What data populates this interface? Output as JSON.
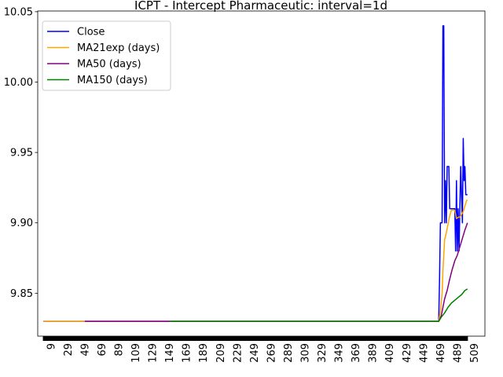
{
  "chart_data": {
    "type": "line",
    "title": "ICPT - Intercept Pharmaceutic: interval=1d",
    "xlabel": "",
    "ylabel": "",
    "xlim": [
      -6.6,
      521.6
    ],
    "ylim": [
      9.8195,
      10.0505
    ],
    "x_ticks": [
      9,
      29,
      49,
      69,
      89,
      109,
      129,
      149,
      169,
      189,
      209,
      229,
      249,
      269,
      289,
      309,
      329,
      349,
      369,
      389,
      409,
      429,
      449,
      469,
      489,
      509
    ],
    "y_ticks": [
      9.85,
      9.9,
      9.95,
      10.0,
      10.05
    ],
    "y_tick_labels": [
      "9.85",
      "9.90",
      "9.95",
      "10.00",
      "10.05"
    ],
    "grid": false,
    "legend_position": "upper-left",
    "series": [
      {
        "name": "Close",
        "color": "#0000ff",
        "points": [
          [
            0,
            9.83
          ],
          [
            467,
            9.83
          ],
          [
            468,
            9.86
          ],
          [
            469,
            9.9
          ],
          [
            471,
            9.9
          ],
          [
            472,
            10.04
          ],
          [
            473,
            10.04
          ],
          [
            474,
            9.9
          ],
          [
            475,
            9.93
          ],
          [
            476,
            9.9
          ],
          [
            477,
            9.94
          ],
          [
            479,
            9.94
          ],
          [
            480,
            9.91
          ],
          [
            486,
            9.91
          ],
          [
            487,
            9.88
          ],
          [
            488,
            9.93
          ],
          [
            489,
            9.88
          ],
          [
            490,
            9.91
          ],
          [
            491,
            9.88
          ],
          [
            493,
            9.94
          ],
          [
            494,
            9.92
          ],
          [
            495,
            9.9
          ],
          [
            496,
            9.96
          ],
          [
            497,
            9.93
          ],
          [
            498,
            9.94
          ],
          [
            499,
            9.92
          ],
          [
            501,
            9.92
          ]
        ]
      },
      {
        "name": "MA21exp (days)",
        "color": "#ffa500",
        "points": [
          [
            0,
            9.83
          ],
          [
            467,
            9.83
          ],
          [
            469,
            9.837
          ],
          [
            471,
            9.85
          ],
          [
            472,
            9.866
          ],
          [
            474,
            9.888
          ],
          [
            476,
            9.893
          ],
          [
            478,
            9.899
          ],
          [
            480,
            9.905
          ],
          [
            482,
            9.909
          ],
          [
            486,
            9.909
          ],
          [
            488,
            9.903
          ],
          [
            490,
            9.904
          ],
          [
            492,
            9.904
          ],
          [
            494,
            9.906
          ],
          [
            496,
            9.908
          ],
          [
            498,
            9.912
          ],
          [
            500,
            9.916
          ],
          [
            501,
            9.916
          ]
        ]
      },
      {
        "name": "MA50 (days)",
        "color": "#800080",
        "points": [
          [
            49,
            9.83
          ],
          [
            467,
            9.83
          ],
          [
            470,
            9.834
          ],
          [
            472,
            9.84
          ],
          [
            474,
            9.846
          ],
          [
            477,
            9.852
          ],
          [
            480,
            9.86
          ],
          [
            483,
            9.867
          ],
          [
            486,
            9.873
          ],
          [
            489,
            9.877
          ],
          [
            492,
            9.883
          ],
          [
            495,
            9.889
          ],
          [
            498,
            9.895
          ],
          [
            501,
            9.9
          ]
        ]
      },
      {
        "name": "MA150 (days)",
        "color": "#008000",
        "points": [
          [
            149,
            9.83
          ],
          [
            467,
            9.83
          ],
          [
            470,
            9.833
          ],
          [
            474,
            9.836
          ],
          [
            478,
            9.84
          ],
          [
            482,
            9.843
          ],
          [
            486,
            9.845
          ],
          [
            490,
            9.847
          ],
          [
            494,
            9.849
          ],
          [
            498,
            9.852
          ],
          [
            501,
            9.853
          ]
        ]
      }
    ]
  }
}
